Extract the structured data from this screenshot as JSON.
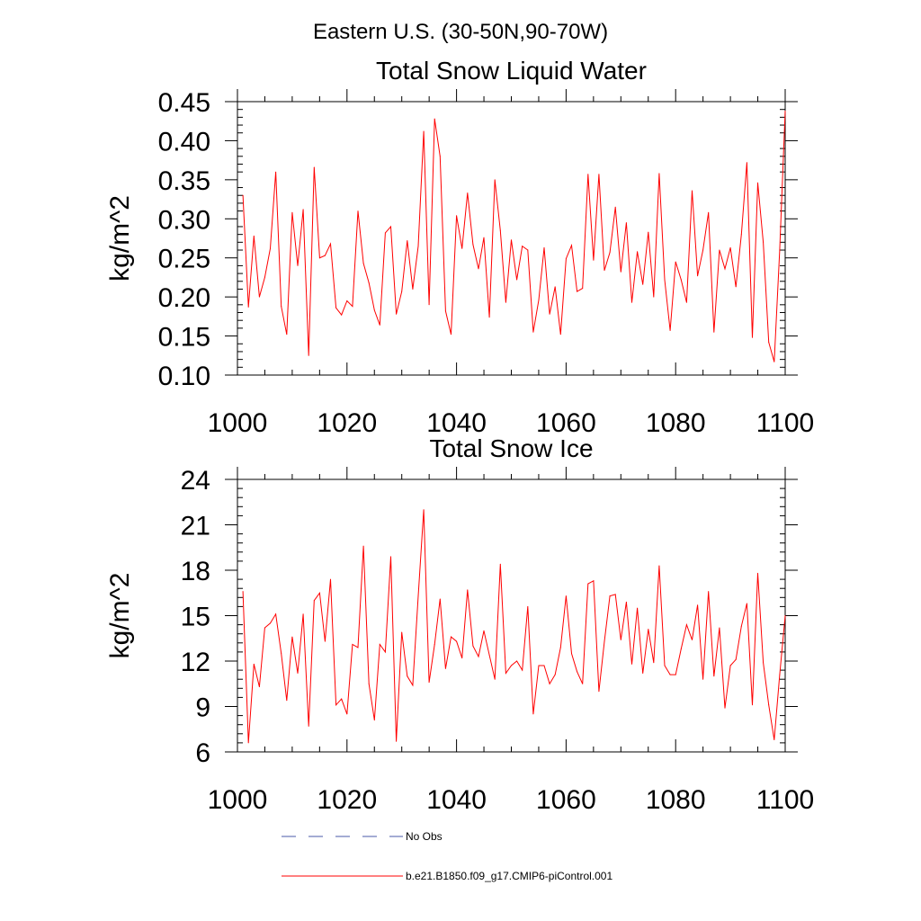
{
  "suptitle": "Eastern U.S. (30-50N,90-70W)",
  "legend": [
    {
      "label": "No Obs",
      "color": "#4a5aa8",
      "dash": "dashed"
    },
    {
      "label": "b.e21.B1850.f09_g17.CMIP6-piControl.001",
      "color": "#ff0000",
      "dash": "solid"
    }
  ],
  "chart_data": [
    {
      "type": "line",
      "title": "Total Snow Liquid Water",
      "xlabel": "",
      "ylabel": "kg/m^2",
      "xlim": [
        1000,
        1100
      ],
      "ylim": [
        0.1,
        0.45
      ],
      "xticks": [
        1000,
        1020,
        1040,
        1060,
        1080,
        1100
      ],
      "xtick_labels": [
        "1000",
        "1020",
        "1040",
        "1060",
        "1080",
        "1100"
      ],
      "yticks": [
        0.1,
        0.15,
        0.2,
        0.25,
        0.3,
        0.35,
        0.4,
        0.45
      ],
      "ytick_labels": [
        "0.10",
        "0.15",
        "0.20",
        "0.25",
        "0.30",
        "0.35",
        "0.40",
        "0.45"
      ],
      "series": [
        {
          "name": "b.e21.B1850.f09_g17.CMIP6-piControl.001",
          "color": "#ff0000",
          "x_start": 1001,
          "values": [
            0.33,
            0.187,
            0.278,
            0.2,
            0.225,
            0.262,
            0.36,
            0.188,
            0.152,
            0.308,
            0.24,
            0.312,
            0.125,
            0.366,
            0.25,
            0.253,
            0.268,
            0.186,
            0.177,
            0.195,
            0.188,
            0.31,
            0.243,
            0.218,
            0.183,
            0.164,
            0.282,
            0.29,
            0.178,
            0.207,
            0.272,
            0.21,
            0.265,
            0.412,
            0.19,
            0.428,
            0.38,
            0.182,
            0.152,
            0.304,
            0.262,
            0.333,
            0.267,
            0.236,
            0.276,
            0.174,
            0.35,
            0.285,
            0.193,
            0.273,
            0.222,
            0.265,
            0.26,
            0.155,
            0.196,
            0.263,
            0.178,
            0.213,
            0.152,
            0.249,
            0.266,
            0.207,
            0.211,
            0.357,
            0.247,
            0.357,
            0.234,
            0.257,
            0.315,
            0.232,
            0.295,
            0.193,
            0.258,
            0.216,
            0.283,
            0.2,
            0.358,
            0.222,
            0.157,
            0.245,
            0.222,
            0.193,
            0.336,
            0.227,
            0.26,
            0.308,
            0.155,
            0.26,
            0.236,
            0.263,
            0.213,
            0.28,
            0.372,
            0.148,
            0.346,
            0.27,
            0.142,
            0.117,
            0.26,
            0.438
          ]
        }
      ]
    },
    {
      "type": "line",
      "title": "Total Snow Ice",
      "xlabel": "",
      "ylabel": "kg/m^2",
      "xlim": [
        1000,
        1100
      ],
      "ylim": [
        6,
        24
      ],
      "xticks": [
        1000,
        1020,
        1040,
        1060,
        1080,
        1100
      ],
      "xtick_labels": [
        "1000",
        "1020",
        "1040",
        "1060",
        "1080",
        "1100"
      ],
      "yticks": [
        6,
        9,
        12,
        15,
        18,
        21,
        24
      ],
      "ytick_labels": [
        "6",
        "9",
        "12",
        "15",
        "18",
        "21",
        "24"
      ],
      "series": [
        {
          "name": "b.e21.B1850.f09_g17.CMIP6-piControl.001",
          "color": "#ff0000",
          "x_start": 1001,
          "values": [
            16.6,
            6.6,
            11.8,
            10.3,
            14.2,
            14.5,
            15.1,
            12.5,
            9.4,
            13.6,
            11.2,
            15.1,
            7.7,
            16.0,
            16.5,
            13.3,
            17.4,
            9.1,
            9.5,
            8.5,
            13.1,
            12.9,
            19.6,
            10.5,
            8.1,
            13.1,
            12.6,
            18.9,
            6.7,
            13.9,
            11.0,
            10.4,
            16.3,
            22.0,
            10.6,
            13.1,
            16.1,
            11.5,
            13.6,
            13.3,
            12.2,
            16.7,
            13.0,
            12.3,
            14.0,
            12.4,
            10.8,
            18.4,
            11.2,
            11.7,
            12.0,
            11.4,
            15.6,
            8.5,
            11.7,
            11.7,
            10.5,
            11.1,
            12.9,
            16.3,
            12.5,
            11.3,
            10.5,
            17.1,
            17.3,
            10.0,
            13.3,
            16.3,
            16.4,
            13.4,
            15.9,
            11.8,
            15.5,
            11.2,
            14.1,
            11.9,
            18.3,
            11.7,
            11.1,
            11.1,
            12.8,
            14.4,
            13.4,
            15.7,
            10.8,
            16.6,
            11.0,
            14.2,
            8.9,
            11.7,
            12.1,
            14.3,
            15.8,
            9.1,
            17.8,
            11.9,
            9.1,
            6.8,
            11.1,
            15.0
          ]
        }
      ]
    }
  ]
}
